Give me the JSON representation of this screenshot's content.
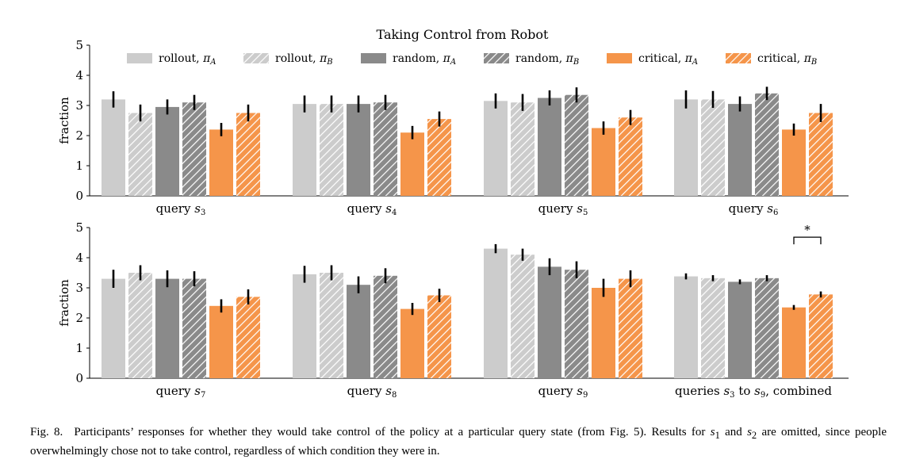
{
  "chart_data": {
    "type": "bar",
    "title": "Taking Control from Robot",
    "ylabel": "fraction",
    "ylim": [
      0,
      5
    ],
    "yticks": [
      0,
      1,
      2,
      3,
      4,
      5
    ],
    "legend_placement": "top",
    "legend": [
      {
        "label": "rollout, πA",
        "base": "rollout, ",
        "sub": "A",
        "color": "#cccccc",
        "hatched": false
      },
      {
        "label": "rollout, πB",
        "base": "rollout, ",
        "sub": "B",
        "color": "#cccccc",
        "hatched": true
      },
      {
        "label": "random, πA",
        "base": "random, ",
        "sub": "A",
        "color": "#8a8a8a",
        "hatched": false
      },
      {
        "label": "random, πB",
        "base": "random, ",
        "sub": "B",
        "color": "#8a8a8a",
        "hatched": true
      },
      {
        "label": "critical, πA",
        "base": "critical, ",
        "sub": "A",
        "color": "#f5954a",
        "hatched": false
      },
      {
        "label": "critical, πB",
        "base": "critical, ",
        "sub": "B",
        "color": "#f5954a",
        "hatched": true
      }
    ],
    "panels": [
      {
        "groups": [
          {
            "label": "query s3",
            "base": "query ",
            "sym": "s",
            "sub": "3",
            "values": [
              3.2,
              2.75,
              2.95,
              3.1,
              2.2,
              2.75
            ],
            "errors": [
              0.27,
              0.28,
              0.25,
              0.25,
              0.22,
              0.28
            ]
          },
          {
            "label": "query s4",
            "base": "query ",
            "sym": "s",
            "sub": "4",
            "values": [
              3.05,
              3.05,
              3.05,
              3.1,
              2.1,
              2.55
            ],
            "errors": [
              0.28,
              0.28,
              0.28,
              0.25,
              0.22,
              0.25
            ]
          },
          {
            "label": "query s5",
            "base": "query ",
            "sym": "s",
            "sub": "5",
            "values": [
              3.15,
              3.1,
              3.25,
              3.35,
              2.25,
              2.6
            ],
            "errors": [
              0.25,
              0.28,
              0.25,
              0.25,
              0.22,
              0.25
            ]
          },
          {
            "label": "query s6",
            "base": "query ",
            "sym": "s",
            "sub": "6",
            "values": [
              3.2,
              3.2,
              3.05,
              3.4,
              2.2,
              2.75
            ],
            "errors": [
              0.3,
              0.28,
              0.25,
              0.22,
              0.2,
              0.3
            ]
          }
        ]
      },
      {
        "groups": [
          {
            "label": "query s7",
            "base": "query ",
            "sym": "s",
            "sub": "7",
            "values": [
              3.3,
              3.5,
              3.3,
              3.3,
              2.4,
              2.7
            ],
            "errors": [
              0.3,
              0.25,
              0.28,
              0.25,
              0.22,
              0.25
            ]
          },
          {
            "label": "query s8",
            "base": "query ",
            "sym": "s",
            "sub": "8",
            "values": [
              3.45,
              3.5,
              3.1,
              3.4,
              2.3,
              2.75
            ],
            "errors": [
              0.28,
              0.25,
              0.28,
              0.25,
              0.2,
              0.22
            ]
          },
          {
            "label": "query s9",
            "base": "query ",
            "sym": "s",
            "sub": "9",
            "values": [
              4.3,
              4.1,
              3.7,
              3.6,
              3.0,
              3.3
            ],
            "errors": [
              0.15,
              0.2,
              0.28,
              0.28,
              0.3,
              0.28
            ]
          },
          {
            "label": "queries s3 to s9, combined",
            "base": "queries ",
            "sym": "s",
            "sub": "3",
            "tail": " to ",
            "sym2": "s",
            "sub2": "9",
            "tail2": ", combined",
            "values": [
              3.38,
              3.32,
              3.2,
              3.32,
              2.35,
              2.78
            ],
            "errors": [
              0.1,
              0.1,
              0.08,
              0.1,
              0.08,
              0.1
            ]
          }
        ],
        "annotation": {
          "text": "*",
          "between": [
            4,
            5
          ],
          "group": 3
        }
      }
    ]
  },
  "caption": {
    "label": "Fig. 8.",
    "text1": "Participants’ responses for whether they would take control of the policy at a particular query state (from Fig. 5). Results for ",
    "sym_a": "s",
    "sub_a": "1",
    "text2": " and ",
    "sym_b": "s",
    "sub_b": "2",
    "text3": " are omitted, since people overwhelmingly chose not to take control, regardless of which condition they were in."
  }
}
